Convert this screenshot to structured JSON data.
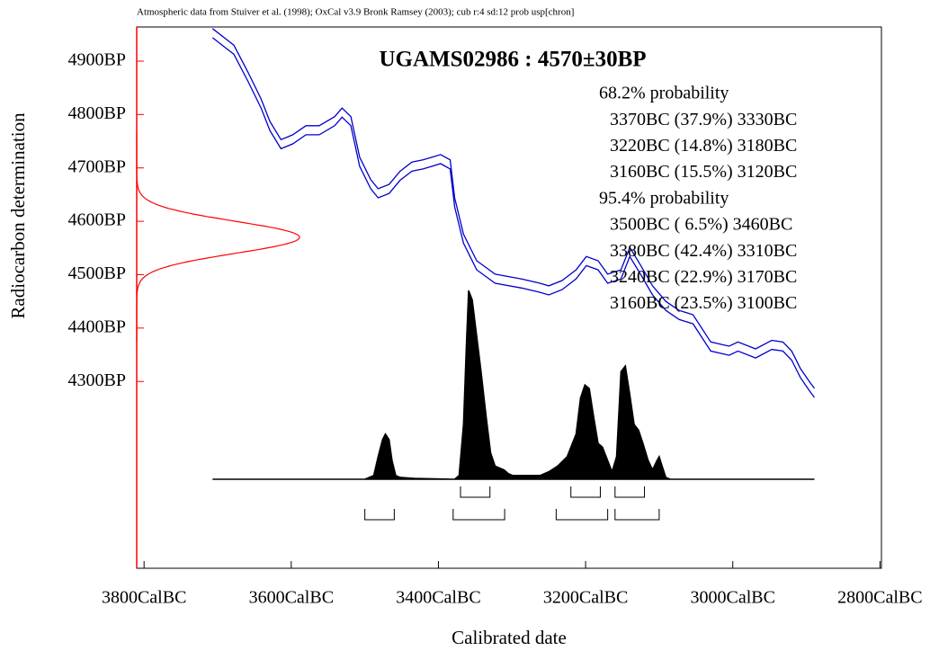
{
  "chart_data": {
    "type": "calibration",
    "note": "Atmospheric data from Stuiver et al. (1998); OxCal v3.9 Bronk Ramsey (2003); cub r:4 sd:12 prob usp[chron]",
    "title": "UGAMS02986 : 4570±30BP",
    "xlabel": "Calibrated date",
    "ylabel": "Radiocarbon determination",
    "xlim": [
      3810,
      2798
    ],
    "ylim": [
      3950,
      4964
    ],
    "xticks": [
      {
        "value": 3800,
        "label": "3800CalBC"
      },
      {
        "value": 3600,
        "label": "3600CalBC"
      },
      {
        "value": 3400,
        "label": "3400CalBC"
      },
      {
        "value": 3200,
        "label": "3200CalBC"
      },
      {
        "value": 3000,
        "label": "3000CalBC"
      },
      {
        "value": 2800,
        "label": "2800CalBC"
      }
    ],
    "yticks": [
      {
        "value": 4300,
        "label": "4300BP"
      },
      {
        "value": 4400,
        "label": "4400BP"
      },
      {
        "value": 4500,
        "label": "4500BP"
      },
      {
        "value": 4600,
        "label": "4600BP"
      },
      {
        "value": 4700,
        "label": "4700BP"
      },
      {
        "value": 4800,
        "label": "4800BP"
      },
      {
        "value": 4900,
        "label": "4900BP"
      }
    ],
    "bp_mean": 4570,
    "bp_error": 30,
    "bp_color": "#ff0000",
    "curve": {
      "color": "#0000cc",
      "x": [
        3707,
        3678,
        3659,
        3641,
        3629,
        3614,
        3598,
        3580,
        3562,
        3541,
        3531,
        3519,
        3507,
        3492,
        3482,
        3467,
        3452,
        3436,
        3421,
        3409,
        3397,
        3384,
        3378,
        3366,
        3348,
        3323,
        3287,
        3262,
        3250,
        3232,
        3213,
        3199,
        3183,
        3170,
        3152,
        3140,
        3125,
        3109,
        3091,
        3073,
        3054,
        3030,
        3005,
        2993,
        2969,
        2947,
        2932,
        2920,
        2908,
        2895,
        2889
      ],
      "upper": [
        4961,
        4930,
        4880,
        4829,
        4787,
        4753,
        4762,
        4779,
        4779,
        4796,
        4812,
        4796,
        4720,
        4678,
        4661,
        4669,
        4694,
        4711,
        4715,
        4720,
        4725,
        4715,
        4644,
        4576,
        4526,
        4501,
        4492,
        4484,
        4479,
        4489,
        4509,
        4534,
        4526,
        4501,
        4509,
        4551,
        4517,
        4479,
        4450,
        4433,
        4425,
        4374,
        4366,
        4374,
        4361,
        4377,
        4374,
        4357,
        4324,
        4298,
        4287
      ],
      "lower": [
        4944,
        4913,
        4863,
        4812,
        4770,
        4736,
        4745,
        4762,
        4762,
        4779,
        4795,
        4779,
        4703,
        4661,
        4644,
        4652,
        4677,
        4694,
        4698,
        4703,
        4708,
        4698,
        4627,
        4559,
        4509,
        4484,
        4475,
        4467,
        4462,
        4472,
        4492,
        4517,
        4509,
        4484,
        4492,
        4534,
        4500,
        4462,
        4433,
        4416,
        4408,
        4357,
        4349,
        4357,
        4344,
        4360,
        4357,
        4340,
        4307,
        4281,
        4270
      ]
    },
    "distribution": {
      "color": "#000000",
      "x": [
        3707,
        3500,
        3488,
        3482,
        3476,
        3472,
        3467,
        3463,
        3458,
        3452,
        3433,
        3378,
        3372,
        3366,
        3362,
        3359,
        3354,
        3348,
        3342,
        3335,
        3329,
        3323,
        3317,
        3311,
        3305,
        3299,
        3274,
        3262,
        3250,
        3238,
        3225,
        3213,
        3207,
        3201,
        3195,
        3189,
        3183,
        3177,
        3170,
        3164,
        3158,
        3152,
        3146,
        3140,
        3134,
        3128,
        3122,
        3115,
        3109,
        3103,
        3100,
        3096,
        3091,
        3085,
        2889
      ],
      "values": [
        0,
        0,
        0.02,
        0.12,
        0.21,
        0.24,
        0.21,
        0.1,
        0.02,
        0.01,
        0.005,
        0,
        0.02,
        0.29,
        0.71,
        1,
        0.95,
        0.76,
        0.57,
        0.33,
        0.14,
        0.07,
        0.06,
        0.05,
        0.03,
        0.02,
        0.02,
        0.02,
        0.04,
        0.07,
        0.12,
        0.24,
        0.43,
        0.5,
        0.48,
        0.33,
        0.19,
        0.17,
        0.1,
        0.04,
        0.12,
        0.57,
        0.6,
        0.45,
        0.29,
        0.26,
        0.19,
        0.1,
        0.05,
        0.1,
        0.12,
        0.07,
        0.01,
        0,
        0
      ]
    },
    "ranges": [
      {
        "heading": "68.2% probability",
        "items": [
          {
            "from": 3370,
            "to": 3330,
            "label": "3370BC (37.9%) 3330BC"
          },
          {
            "from": 3220,
            "to": 3180,
            "label": "3220BC (14.8%) 3180BC"
          },
          {
            "from": 3160,
            "to": 3120,
            "label": "3160BC (15.5%) 3120BC"
          }
        ]
      },
      {
        "heading": "95.4% probability",
        "items": [
          {
            "from": 3500,
            "to": 3460,
            "label": "3500BC ( 6.5%) 3460BC"
          },
          {
            "from": 3380,
            "to": 3310,
            "label": "3380BC (42.4%) 3310BC"
          },
          {
            "from": 3240,
            "to": 3170,
            "label": "3240BC (22.9%) 3170BC"
          },
          {
            "from": 3160,
            "to": 3100,
            "label": "3160BC (23.5%) 3100BC"
          }
        ]
      }
    ]
  }
}
